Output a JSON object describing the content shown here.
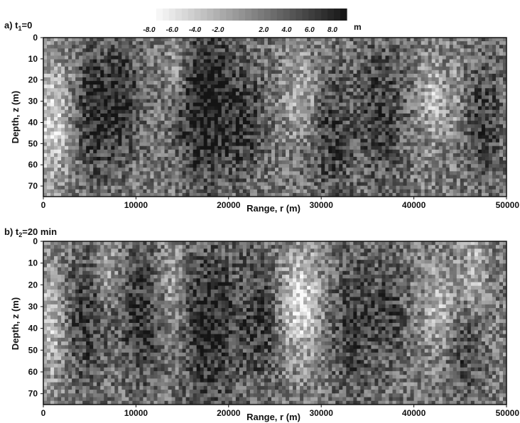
{
  "chart_data": [
    {
      "type": "heatmap",
      "panel_label": "a) t",
      "panel_sub": "1",
      "panel_rest": "=0",
      "xlabel": "Range, r (m)",
      "ylabel": "Depth, z (m)",
      "xlim": [
        0,
        50000
      ],
      "ylim": [
        0,
        75
      ],
      "y_inverted": true,
      "x_ticks": [
        "0",
        "10000",
        "20000",
        "30000",
        "40000",
        "50000"
      ],
      "x_tick_values": [
        0,
        10000,
        20000,
        30000,
        40000,
        50000
      ],
      "y_ticks": [
        "0",
        "10",
        "20",
        "30",
        "40",
        "50",
        "60",
        "70"
      ],
      "y_tick_values": [
        0,
        10,
        20,
        30,
        40,
        50,
        60,
        70
      ],
      "colorbar": {
        "ticks": [
          "-8.0",
          "-6.0",
          "-4.0",
          "-2.0",
          "2.0",
          "4.0",
          "6.0",
          "8.0"
        ],
        "values": [
          -8,
          -6,
          -4,
          -2,
          2,
          4,
          6,
          8
        ],
        "unit": "m",
        "range": [
          -9,
          9
        ],
        "colormap": "grayscale"
      },
      "features": [
        {
          "r": 1000,
          "z": 40,
          "sr": 1400,
          "sz": 22,
          "v": 7
        },
        {
          "r": 5500,
          "z": 35,
          "sr": 1600,
          "sz": 22,
          "v": -6
        },
        {
          "r": 8500,
          "z": 30,
          "sr": 1500,
          "sz": 20,
          "v": -5
        },
        {
          "r": 14500,
          "z": 15,
          "sr": 900,
          "sz": 10,
          "v": 4
        },
        {
          "r": 17500,
          "z": 30,
          "sr": 2200,
          "sz": 28,
          "v": -8
        },
        {
          "r": 22000,
          "z": 40,
          "sr": 1500,
          "sz": 20,
          "v": -4
        },
        {
          "r": 28000,
          "z": 28,
          "sr": 1300,
          "sz": 14,
          "v": 5
        },
        {
          "r": 31000,
          "z": 45,
          "sr": 1800,
          "sz": 22,
          "v": -5
        },
        {
          "r": 36500,
          "z": 35,
          "sr": 1800,
          "sz": 24,
          "v": -5
        },
        {
          "r": 42000,
          "z": 28,
          "sr": 1000,
          "sz": 14,
          "v": 5
        },
        {
          "r": 44500,
          "z": 30,
          "sr": 600,
          "sz": 16,
          "v": 3
        },
        {
          "r": 47500,
          "z": 40,
          "sr": 1500,
          "sz": 20,
          "v": -5
        }
      ]
    },
    {
      "type": "heatmap",
      "panel_label": "b) t",
      "panel_sub": "2",
      "panel_rest": "=20 min",
      "xlabel": "Range, r (m)",
      "ylabel": "Depth, z (m)",
      "xlim": [
        0,
        50000
      ],
      "ylim": [
        0,
        75
      ],
      "y_inverted": true,
      "x_ticks": [
        "0",
        "10000",
        "20000",
        "30000",
        "40000",
        "50000"
      ],
      "x_tick_values": [
        0,
        10000,
        20000,
        30000,
        40000,
        50000
      ],
      "y_ticks": [
        "0",
        "10",
        "20",
        "30",
        "40",
        "50",
        "60",
        "70"
      ],
      "y_tick_values": [
        0,
        10,
        20,
        30,
        40,
        50,
        60,
        70
      ],
      "features": [
        {
          "r": 700,
          "z": 38,
          "sr": 1200,
          "sz": 20,
          "v": 6
        },
        {
          "r": 4500,
          "z": 35,
          "sr": 1600,
          "sz": 22,
          "v": -5
        },
        {
          "r": 7000,
          "z": 15,
          "sr": 800,
          "sz": 10,
          "v": 4
        },
        {
          "r": 10500,
          "z": 35,
          "sr": 1500,
          "sz": 22,
          "v": -6
        },
        {
          "r": 14000,
          "z": 22,
          "sr": 900,
          "sz": 18,
          "v": 4
        },
        {
          "r": 18000,
          "z": 38,
          "sr": 2200,
          "sz": 26,
          "v": -7
        },
        {
          "r": 23500,
          "z": 35,
          "sr": 1500,
          "sz": 22,
          "v": -5
        },
        {
          "r": 27800,
          "z": 28,
          "sr": 1500,
          "sz": 18,
          "v": 8
        },
        {
          "r": 33500,
          "z": 38,
          "sr": 1800,
          "sz": 24,
          "v": -5
        },
        {
          "r": 37500,
          "z": 30,
          "sr": 1200,
          "sz": 20,
          "v": -4
        },
        {
          "r": 42800,
          "z": 30,
          "sr": 1200,
          "sz": 14,
          "v": 5
        },
        {
          "r": 46500,
          "z": 15,
          "sr": 1000,
          "sz": 14,
          "v": 5
        },
        {
          "r": 45500,
          "z": 50,
          "sr": 1300,
          "sz": 18,
          "v": -4
        }
      ]
    }
  ]
}
